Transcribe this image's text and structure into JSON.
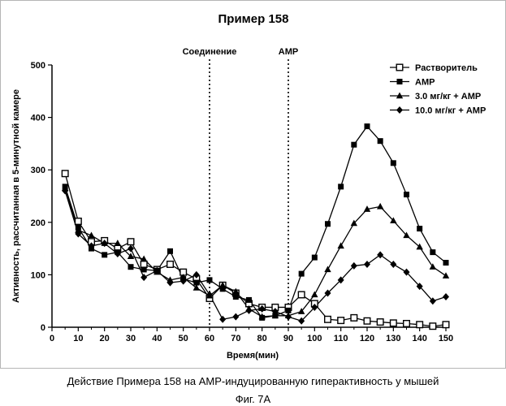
{
  "chart_data": {
    "type": "line",
    "title": "Пример 158",
    "xlabel": "Время(мин)",
    "ylabel": "Активность, рассчитанная в 5-минутной камере",
    "xlim": [
      0,
      150
    ],
    "ylim": [
      0,
      500
    ],
    "xticks": [
      0,
      10,
      20,
      30,
      40,
      50,
      60,
      70,
      80,
      90,
      100,
      110,
      120,
      130,
      140,
      150
    ],
    "yticks": [
      0,
      100,
      200,
      300,
      400,
      500
    ],
    "legend_position": "top-right",
    "grid": false,
    "markers": [
      {
        "x": 60,
        "label": "Соединение"
      },
      {
        "x": 90,
        "label": "АМР"
      }
    ],
    "series": [
      {
        "name": "Растворитель",
        "marker": "open-square",
        "x": [
          5,
          10,
          15,
          20,
          25,
          30,
          35,
          40,
          45,
          50,
          55,
          60,
          65,
          70,
          75,
          80,
          85,
          90,
          95,
          100,
          105,
          110,
          115,
          120,
          125,
          130,
          135,
          140,
          145,
          150
        ],
        "values": [
          293,
          202,
          163,
          165,
          150,
          163,
          120,
          110,
          120,
          105,
          92,
          55,
          80,
          65,
          45,
          38,
          38,
          38,
          62,
          45,
          15,
          13,
          18,
          12,
          10,
          8,
          7,
          5,
          2,
          5
        ]
      },
      {
        "name": "АМР",
        "marker": "filled-square",
        "x": [
          5,
          10,
          15,
          20,
          25,
          30,
          35,
          40,
          45,
          50,
          55,
          60,
          65,
          70,
          75,
          80,
          85,
          90,
          95,
          100,
          105,
          110,
          115,
          120,
          125,
          130,
          135,
          140,
          145,
          150
        ],
        "values": [
          268,
          190,
          150,
          138,
          143,
          115,
          110,
          108,
          145,
          92,
          85,
          90,
          73,
          58,
          52,
          18,
          22,
          32,
          102,
          133,
          197,
          268,
          348,
          383,
          355,
          313,
          253,
          188,
          143,
          123
        ]
      },
      {
        "name": "3.0 мг/кг + АМР",
        "marker": "filled-triangle",
        "x": [
          5,
          10,
          15,
          20,
          25,
          30,
          35,
          40,
          45,
          50,
          55,
          60,
          65,
          70,
          75,
          80,
          85,
          90,
          95,
          100,
          105,
          110,
          115,
          120,
          125,
          130,
          135,
          140,
          145,
          150
        ],
        "values": [
          265,
          185,
          175,
          160,
          160,
          135,
          130,
          105,
          90,
          95,
          75,
          60,
          80,
          68,
          35,
          20,
          22,
          22,
          30,
          62,
          110,
          155,
          198,
          225,
          230,
          203,
          175,
          153,
          115,
          98
        ]
      },
      {
        "name": "10.0 мг/кг + АМР",
        "marker": "filled-diamond",
        "x": [
          5,
          10,
          15,
          20,
          25,
          30,
          35,
          40,
          45,
          50,
          55,
          60,
          65,
          70,
          75,
          80,
          85,
          90,
          95,
          100,
          105,
          110,
          115,
          120,
          125,
          130,
          135,
          140,
          145,
          150
        ],
        "values": [
          260,
          178,
          155,
          160,
          140,
          150,
          95,
          108,
          85,
          88,
          100,
          62,
          15,
          20,
          32,
          35,
          30,
          20,
          12,
          38,
          65,
          90,
          117,
          120,
          138,
          120,
          105,
          78,
          50,
          58
        ]
      }
    ]
  },
  "caption": "Действие Примера 158 на АМР-индуцированную гиперактивность у мышей",
  "figure_label": "Фиг. 7A"
}
